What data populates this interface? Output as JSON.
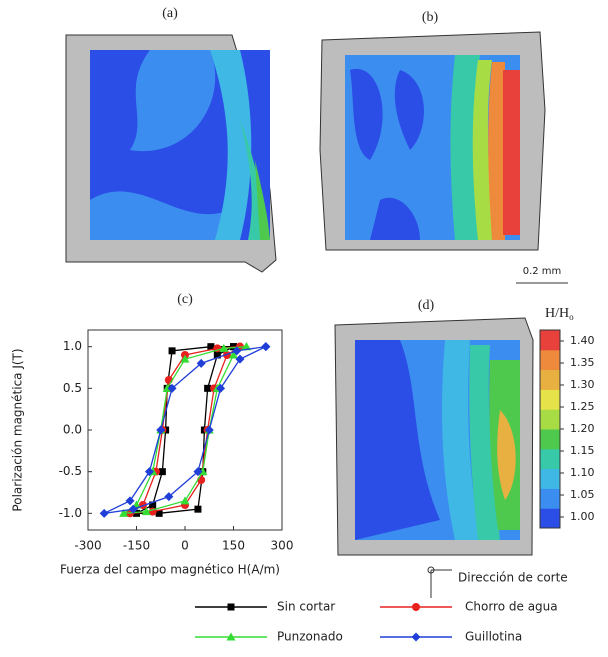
{
  "panels": {
    "a": "(a)",
    "b": "(b)",
    "c": "(c)",
    "d": "(d)"
  },
  "scale_bar": "0.2 mm",
  "cut_direction": "Dirección de corte",
  "colorbar": {
    "title": "H/H",
    "title_sub": "o",
    "ticks": [
      {
        "value": 1.0,
        "label": "1.00"
      },
      {
        "value": 1.05,
        "label": "1.05"
      },
      {
        "value": 1.1,
        "label": "1.10"
      },
      {
        "value": 1.15,
        "label": "1.15"
      },
      {
        "value": 1.2,
        "label": "1.20"
      },
      {
        "value": 1.25,
        "label": "1.25"
      },
      {
        "value": 1.3,
        "label": "1.30"
      },
      {
        "value": 1.35,
        "label": "1.35"
      },
      {
        "value": 1.4,
        "label": "1.40"
      }
    ],
    "lim": [
      0.975,
      1.425
    ],
    "colors": [
      "#2b4fe6",
      "#3b8ef0",
      "#3fb8e6",
      "#38c9a8",
      "#4ec94e",
      "#a8dc44",
      "#e6e24a",
      "#e8b040",
      "#ee8a3c",
      "#e8403a"
    ]
  },
  "chart_data": {
    "type": "line",
    "xlabel": "Fuerza del campo magnético H(A/m)",
    "ylabel": "Polarización magnética J(T)",
    "xlim": [
      -300,
      300
    ],
    "xticks": [
      -300,
      -150,
      0,
      150,
      300
    ],
    "ylim": [
      -1.2,
      1.2
    ],
    "yticks": [
      {
        "value": -1.0,
        "label": "-1.0"
      },
      {
        "value": -0.5,
        "label": "-0.5"
      },
      {
        "value": 0.0,
        "label": "0.0"
      },
      {
        "value": 0.5,
        "label": "0.5"
      },
      {
        "value": 1.0,
        "label": "1.0"
      }
    ],
    "series": [
      {
        "name": "Sin cortar",
        "color": "#000000",
        "marker": "square",
        "x": [
          150,
          80,
          -40,
          -55,
          -60,
          -70,
          -100,
          -150,
          -80,
          40,
          55,
          60,
          70,
          100,
          150
        ],
        "values": [
          1,
          1,
          0.95,
          0.5,
          0,
          -0.5,
          -0.9,
          -1,
          -1,
          -0.95,
          -0.5,
          0,
          0.5,
          0.9,
          1
        ]
      },
      {
        "name": "Chorro de agua",
        "color": "#e8211e",
        "marker": "circle",
        "x": [
          170,
          100,
          0,
          -50,
          -70,
          -90,
          -130,
          -170,
          -100,
          0,
          50,
          70,
          90,
          130,
          170
        ],
        "values": [
          1,
          0.98,
          0.9,
          0.6,
          0,
          -0.5,
          -0.9,
          -1,
          -0.98,
          -0.9,
          -0.6,
          0,
          0.5,
          0.9,
          1
        ]
      },
      {
        "name": "Punzonado",
        "color": "#33dd33",
        "marker": "triangle",
        "x": [
          190,
          120,
          0,
          -55,
          -75,
          -100,
          -150,
          -190,
          -120,
          0,
          55,
          75,
          100,
          150,
          190
        ],
        "values": [
          1,
          0.98,
          0.85,
          0.5,
          0,
          -0.5,
          -0.9,
          -1,
          -0.98,
          -0.85,
          -0.5,
          0,
          0.5,
          0.9,
          1
        ]
      },
      {
        "name": "Guillotina",
        "color": "#1f3fd8",
        "marker": "diamond",
        "x": [
          250,
          160,
          50,
          -40,
          -75,
          -110,
          -170,
          -250,
          -160,
          -50,
          40,
          75,
          110,
          170,
          250
        ],
        "values": [
          1,
          0.95,
          0.8,
          0.5,
          0,
          -0.5,
          -0.85,
          -1,
          -0.95,
          -0.8,
          -0.5,
          0,
          0.5,
          0.85,
          1
        ]
      }
    ]
  }
}
